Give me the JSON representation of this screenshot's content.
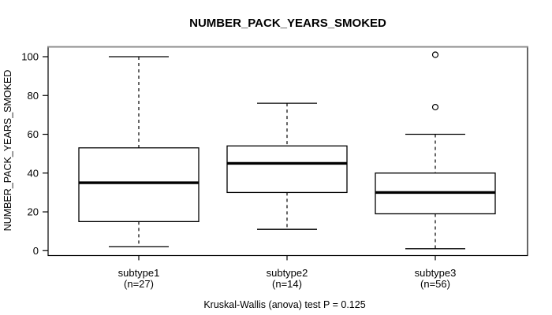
{
  "chart_data": {
    "type": "boxplot",
    "title": "NUMBER_PACK_YEARS_SMOKED",
    "ylabel": "NUMBER_PACK_YEARS_SMOKED",
    "xlabel": "",
    "caption": "Kruskal-Wallis (anova) test P = 0.125",
    "ylim": [
      0,
      100
    ],
    "yticks": [
      0,
      20,
      40,
      60,
      80,
      100
    ],
    "grid": false,
    "legend": "none",
    "categories": [
      "subtype1",
      "subtype2",
      "subtype3"
    ],
    "category_sublabels": [
      "(n=27)",
      "(n=14)",
      "(n=56)"
    ],
    "category_counts": [
      27,
      14,
      56
    ],
    "series": [
      {
        "name": "subtype1",
        "n": 27,
        "whisker_low": 2,
        "q1": 15,
        "median": 35,
        "q3": 53,
        "whisker_high": 100,
        "outliers": []
      },
      {
        "name": "subtype2",
        "n": 14,
        "whisker_low": 11,
        "q1": 30,
        "median": 45,
        "q3": 54,
        "whisker_high": 76,
        "outliers": []
      },
      {
        "name": "subtype3",
        "n": 56,
        "whisker_low": 1,
        "q1": 19,
        "median": 30,
        "q3": 40,
        "whisker_high": 60,
        "outliers": [
          74,
          101
        ]
      }
    ],
    "colors": {
      "line": "#000000",
      "box_fill": "#ffffff",
      "frame_top_edge": "#8c8c8c",
      "background": "#ffffff"
    }
  }
}
